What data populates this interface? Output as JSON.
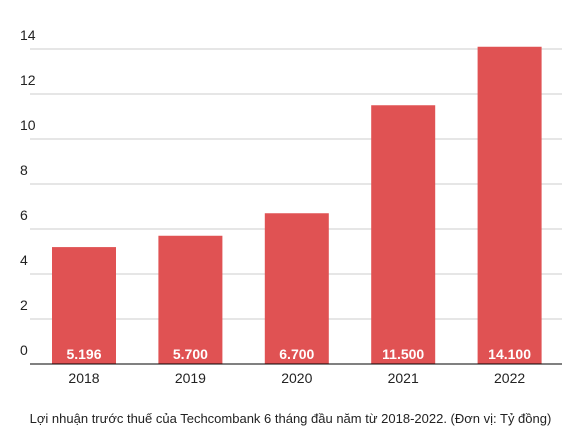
{
  "chart_data": {
    "type": "bar",
    "categories": [
      "2018",
      "2019",
      "2020",
      "2021",
      "2022"
    ],
    "values": [
      5.196,
      5.7,
      6.7,
      11.5,
      14.1
    ],
    "data_labels": [
      "5.196",
      "5.700",
      "6.700",
      "11.500",
      "14.100"
    ],
    "y_ticks": [
      0,
      2,
      4,
      6,
      8,
      10,
      12,
      14
    ],
    "ylim": [
      0,
      14.8
    ],
    "grid": true,
    "bar_color": "#e05253",
    "caption": "Lợi nhuận trước thuế của Techcombank 6 tháng đầu năm từ 2018-2022. (Đơn vị: Tỷ đồng)"
  }
}
